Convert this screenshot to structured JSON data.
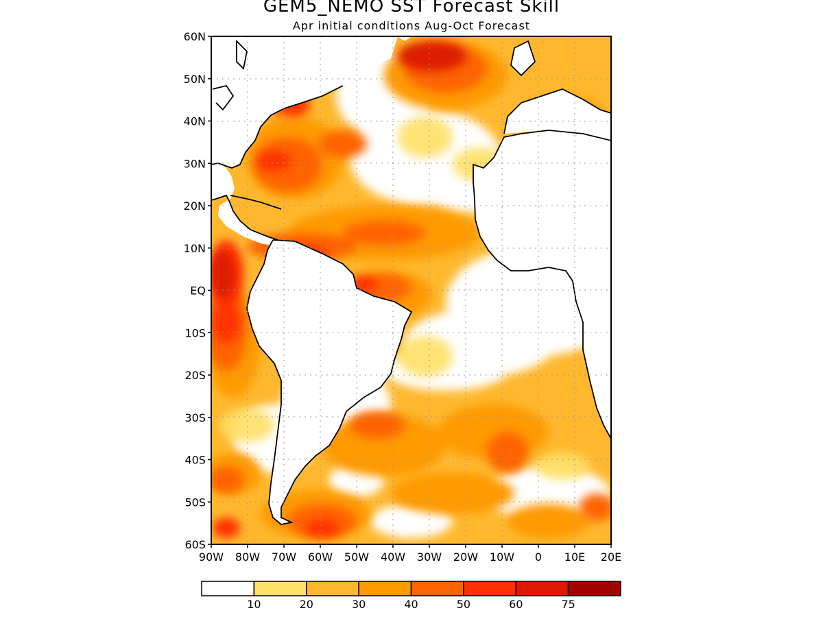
{
  "title": "GEM5_NEMO SST Forecast Skill",
  "subtitle": "Apr initial conditions  Aug-Oct Forecast",
  "map": {
    "lon_range": [
      -90,
      20
    ],
    "lat_range": [
      -60,
      60
    ],
    "lat_ticks": [
      "60N",
      "50N",
      "40N",
      "30N",
      "20N",
      "10N",
      "EQ",
      "10S",
      "20S",
      "30S",
      "40S",
      "50S",
      "60S"
    ],
    "lon_ticks": [
      "90W",
      "80W",
      "70W",
      "60W",
      "50W",
      "40W",
      "30W",
      "20W",
      "10W",
      "0",
      "10E",
      "20E"
    ],
    "grid": true
  },
  "colorbar": {
    "colors": [
      "#ffffff",
      "#ffe066",
      "#ffb82e",
      "#ff9a00",
      "#ff6400",
      "#ff3000",
      "#dd1a00",
      "#a50000"
    ],
    "labels": [
      "10",
      "20",
      "30",
      "40",
      "50",
      "60",
      "75"
    ]
  }
}
